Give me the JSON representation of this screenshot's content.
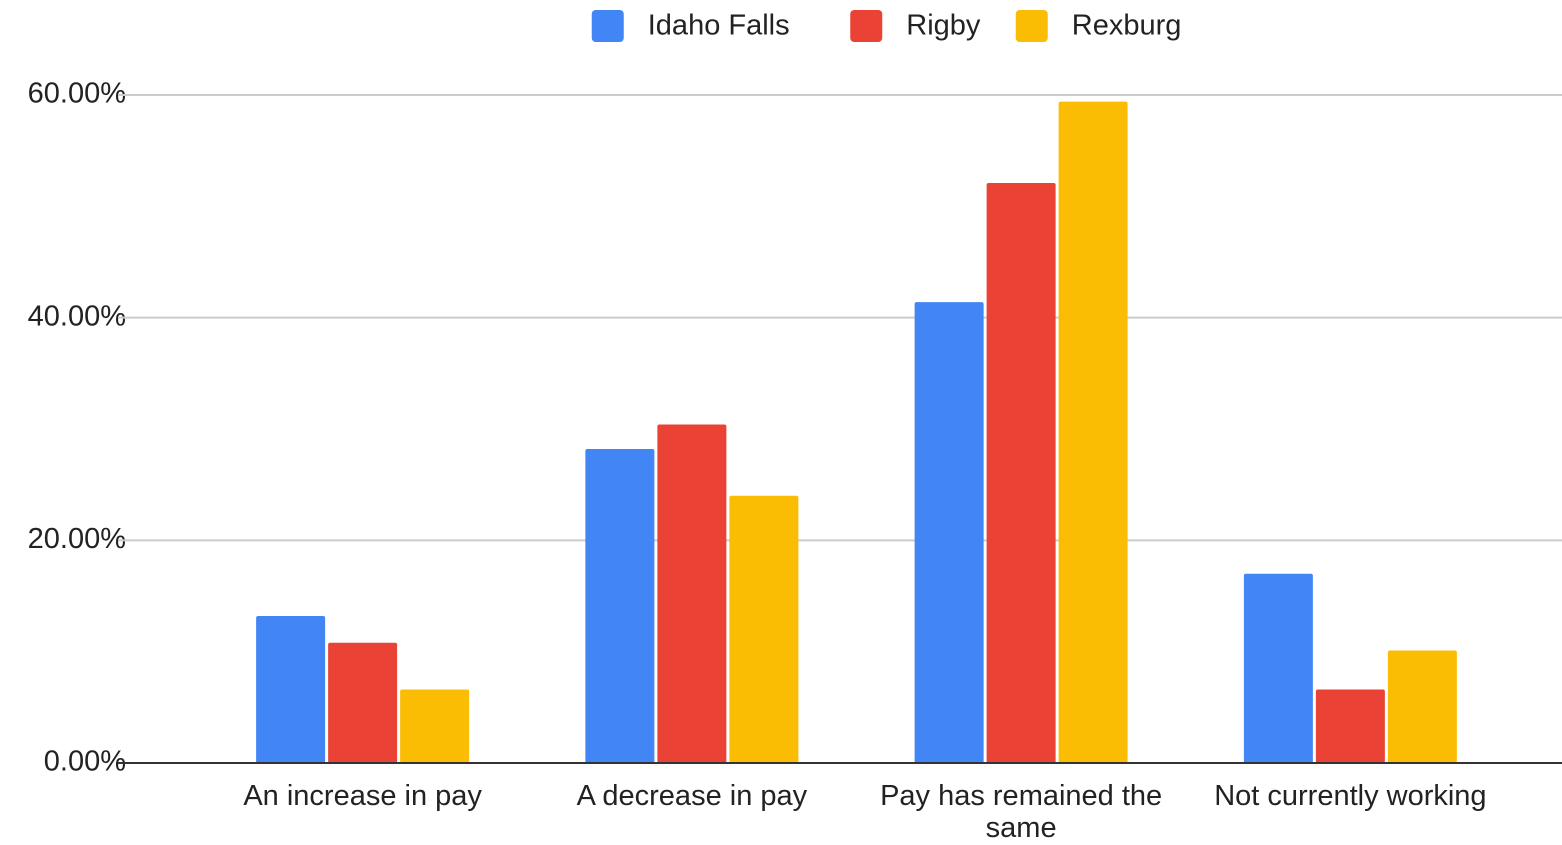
{
  "chart_data": {
    "type": "bar",
    "categories": [
      "An increase in pay",
      "A decrease in pay",
      "Pay has remained the same",
      "Not currently working"
    ],
    "series": [
      {
        "name": "Idaho Falls",
        "color": "#4285f4",
        "values": [
          13.2,
          28.2,
          41.4,
          17.0
        ]
      },
      {
        "name": "Rigby",
        "color": "#ea4335",
        "values": [
          10.8,
          30.4,
          52.1,
          6.6
        ]
      },
      {
        "name": "Rexburg",
        "color": "#fbbc04",
        "values": [
          6.6,
          24.0,
          59.4,
          10.1
        ]
      }
    ],
    "ylim": [
      0,
      60
    ],
    "yticks": [
      {
        "value": 0,
        "label": "0.00%"
      },
      {
        "value": 20,
        "label": "20.00%"
      },
      {
        "value": 40,
        "label": "40.00%"
      },
      {
        "value": 60,
        "label": "60.00%"
      }
    ],
    "grid": true,
    "legend": "top"
  }
}
